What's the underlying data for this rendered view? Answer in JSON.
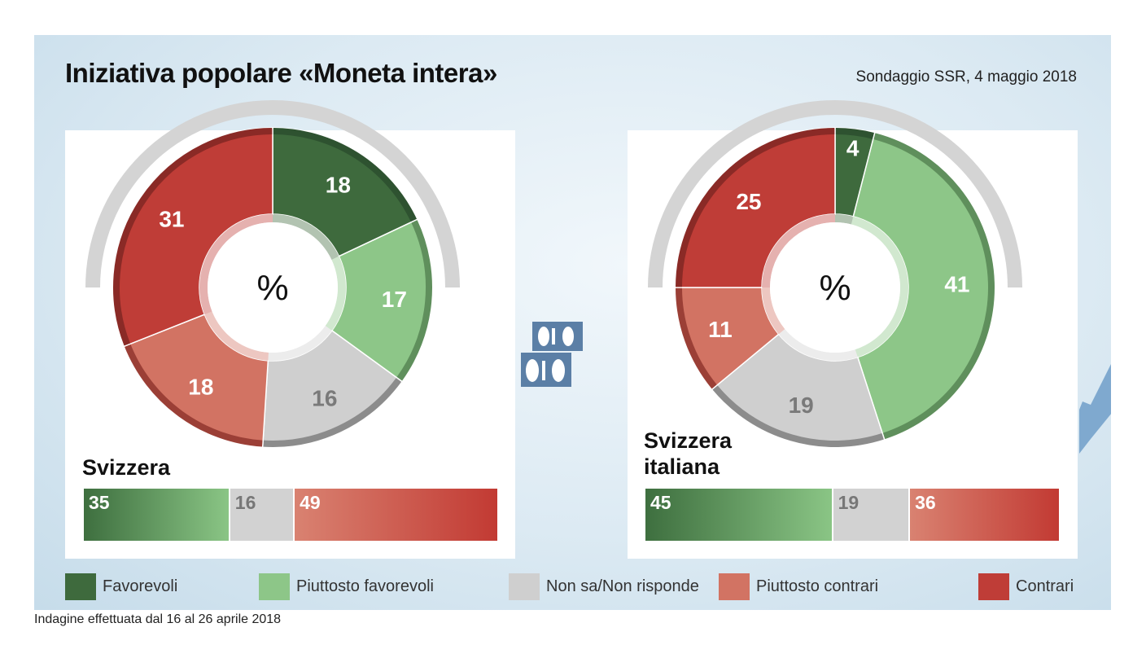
{
  "title": "Iniziativa popolare «Moneta intera»",
  "source": "Sondaggio SSR, 4 maggio 2018",
  "footer": "Indagine effettuata dal 16 al 26 aprile 2018",
  "colors": {
    "favorevoli": "#3e6a3d",
    "piuttosto_favorevoli": "#8dc688",
    "non_sa": "#cfcfcf",
    "piuttosto_contrari": "#d27363",
    "contrari": "#bf3d37"
  },
  "legend": [
    {
      "key": "favorevoli",
      "label": "Favorevoli"
    },
    {
      "key": "piuttosto_favorevoli",
      "label": "Piuttosto favorevoli"
    },
    {
      "key": "non_sa",
      "label": "Non sa/Non risponde"
    },
    {
      "key": "piuttosto_contrari",
      "label": "Piuttosto contrari"
    },
    {
      "key": "contrari",
      "label": "Contrari"
    }
  ],
  "chart_data": [
    {
      "type": "pie",
      "variant": "donut",
      "region": "Svizzera",
      "center_label": "%",
      "categories": [
        "Favorevoli",
        "Piuttosto favorevoli",
        "Non sa/Non risponde",
        "Piuttosto contrari",
        "Contrari"
      ],
      "values": [
        18,
        17,
        16,
        18,
        31
      ],
      "summary_bar": {
        "favorevoli": 35,
        "non_sa": 16,
        "contrari": 49
      }
    },
    {
      "type": "pie",
      "variant": "donut",
      "region": "Svizzera italiana",
      "region_lines": [
        "Svizzera",
        "italiana"
      ],
      "center_label": "%",
      "categories": [
        "Favorevoli",
        "Piuttosto favorevoli",
        "Non sa/Non risponde",
        "Piuttosto contrari",
        "Contrari"
      ],
      "values": [
        4,
        41,
        19,
        11,
        25
      ],
      "summary_bar": {
        "favorevoli": 45,
        "non_sa": 19,
        "contrari": 36
      }
    }
  ]
}
